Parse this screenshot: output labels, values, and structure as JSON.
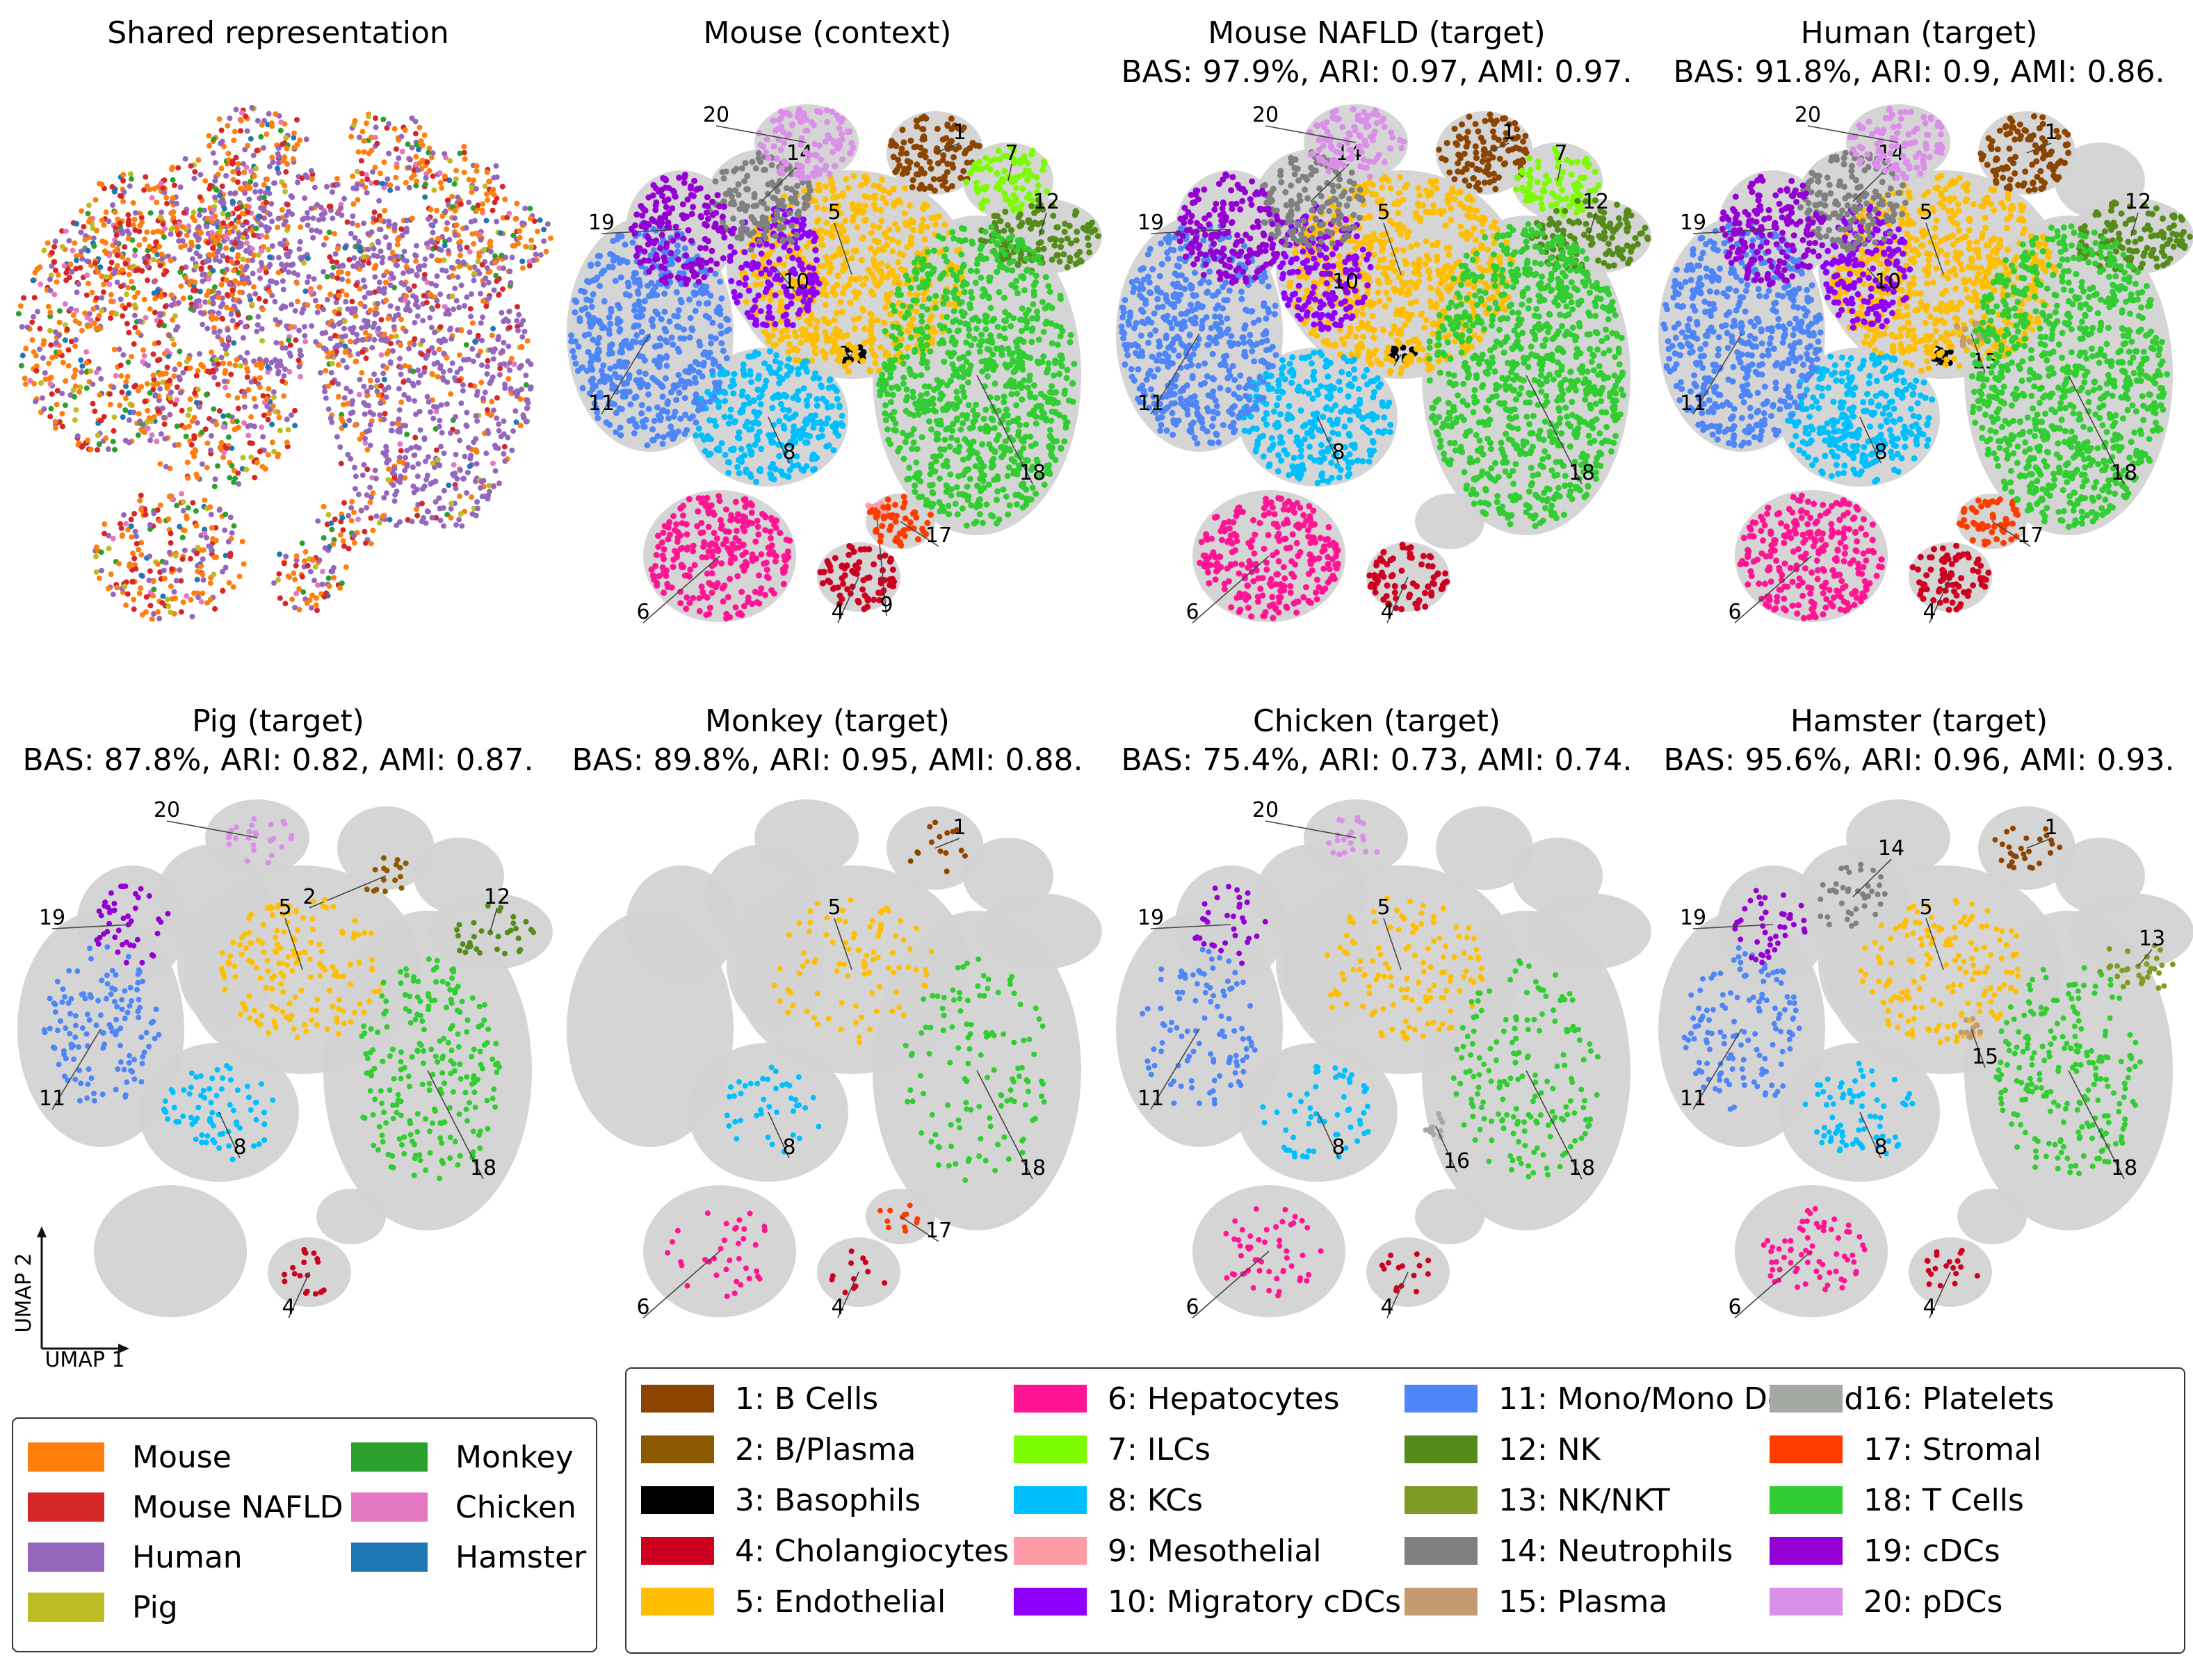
{
  "colors": {
    "background_cells": "#d3d3d3",
    "species": {
      "Mouse": "#ff7f0e",
      "Mouse NAFLD": "#d62728",
      "Human": "#9467bd",
      "Pig": "#bcbd22",
      "Monkey": "#2ca02c",
      "Chicken": "#e377c2",
      "Hamster": "#1f77b4"
    },
    "cell_types": {
      "1": "#8b4500",
      "2": "#8b5a00",
      "3": "#000000",
      "4": "#cd0020",
      "5": "#ffbf00",
      "6": "#ff1493",
      "7": "#7cfc00",
      "8": "#00bfff",
      "9": "#ff9aa6",
      "10": "#8f00ff",
      "11": "#4f86f7",
      "12": "#548b1a",
      "13": "#7e9c23",
      "14": "#808080",
      "15": "#c39b6e",
      "16": "#a4aaa3",
      "17": "#ff3c00",
      "18": "#32cd32",
      "19": "#9400d3",
      "20": "#da8fe8"
    }
  },
  "panels": [
    {
      "id": "shared",
      "title": "Shared representation",
      "metrics": ""
    },
    {
      "id": "mouse",
      "title": "Mouse (context)",
      "metrics": ""
    },
    {
      "id": "nafld",
      "title": "Mouse NAFLD (target)",
      "metrics": "BAS: 97.9%, ARI: 0.97, AMI: 0.97."
    },
    {
      "id": "human",
      "title": "Human (target)",
      "metrics": "BAS: 91.8%, ARI: 0.9, AMI: 0.86."
    },
    {
      "id": "pig",
      "title": "Pig (target)",
      "metrics": "BAS: 87.8%, ARI: 0.82, AMI: 0.87."
    },
    {
      "id": "monkey",
      "title": "Monkey (target)",
      "metrics": "BAS: 89.8%, ARI: 0.95, AMI: 0.88."
    },
    {
      "id": "chicken",
      "title": "Chicken (target)",
      "metrics": "BAS: 75.4%, ARI: 0.73, AMI: 0.74."
    },
    {
      "id": "hamster",
      "title": "Hamster (target)",
      "metrics": "BAS: 95.6%, ARI: 0.96, AMI: 0.93."
    }
  ],
  "axes": {
    "x": "UMAP 1",
    "y": "UMAP 2"
  },
  "species_legend": [
    "Mouse",
    "Mouse NAFLD",
    "Human",
    "Pig",
    "Monkey",
    "Chicken",
    "Hamster"
  ],
  "cell_type_legend": [
    {
      "id": "1",
      "label": "1:  B Cells"
    },
    {
      "id": "2",
      "label": "2:  B/Plasma"
    },
    {
      "id": "3",
      "label": "3:  Basophils"
    },
    {
      "id": "4",
      "label": "4:  Cholangiocytes"
    },
    {
      "id": "5",
      "label": "5:  Endothelial"
    },
    {
      "id": "6",
      "label": "6:  Hepatocytes"
    },
    {
      "id": "7",
      "label": "7:  ILCs"
    },
    {
      "id": "8",
      "label": "8:  KCs"
    },
    {
      "id": "9",
      "label": "9:  Mesothelial"
    },
    {
      "id": "10",
      "label": "10:  Migratory cDCs"
    },
    {
      "id": "11",
      "label": "11:  Mono/Mono Derived"
    },
    {
      "id": "12",
      "label": "12:  NK"
    },
    {
      "id": "13",
      "label": "13:  NK/NKT"
    },
    {
      "id": "14",
      "label": "14:  Neutrophils"
    },
    {
      "id": "15",
      "label": "15:  Plasma"
    },
    {
      "id": "16",
      "label": "16:  Platelets"
    },
    {
      "id": "17",
      "label": "17:  Stromal"
    },
    {
      "id": "18",
      "label": "18:  T Cells"
    },
    {
      "id": "19",
      "label": "19:  cDCs"
    },
    {
      "id": "20",
      "label": "20:  pDCs"
    }
  ],
  "chart_data": {
    "type": "scatter",
    "description_type": "UMAP embedding panels",
    "clusters_present": {
      "mouse": [
        "1",
        "3",
        "4",
        "5",
        "6",
        "7",
        "8",
        "9",
        "10",
        "11",
        "12",
        "14",
        "17",
        "18",
        "19",
        "20"
      ],
      "nafld": [
        "1",
        "3",
        "4",
        "5",
        "6",
        "7",
        "8",
        "10",
        "11",
        "12",
        "14",
        "18",
        "19",
        "20"
      ],
      "human": [
        "1",
        "3",
        "4",
        "5",
        "6",
        "8",
        "10",
        "11",
        "12",
        "14",
        "15",
        "17",
        "18",
        "19",
        "20"
      ],
      "pig": [
        "2",
        "4",
        "5",
        "8",
        "11",
        "12",
        "18",
        "19",
        "20"
      ],
      "monkey": [
        "1",
        "4",
        "5",
        "6",
        "8",
        "17",
        "18"
      ],
      "chicken": [
        "4",
        "5",
        "6",
        "8",
        "11",
        "16",
        "18",
        "19",
        "20"
      ],
      "hamster": [
        "1",
        "4",
        "5",
        "6",
        "8",
        "11",
        "13",
        "14",
        "15",
        "18",
        "19"
      ]
    },
    "grid": false,
    "legend_placement": "bottom"
  }
}
